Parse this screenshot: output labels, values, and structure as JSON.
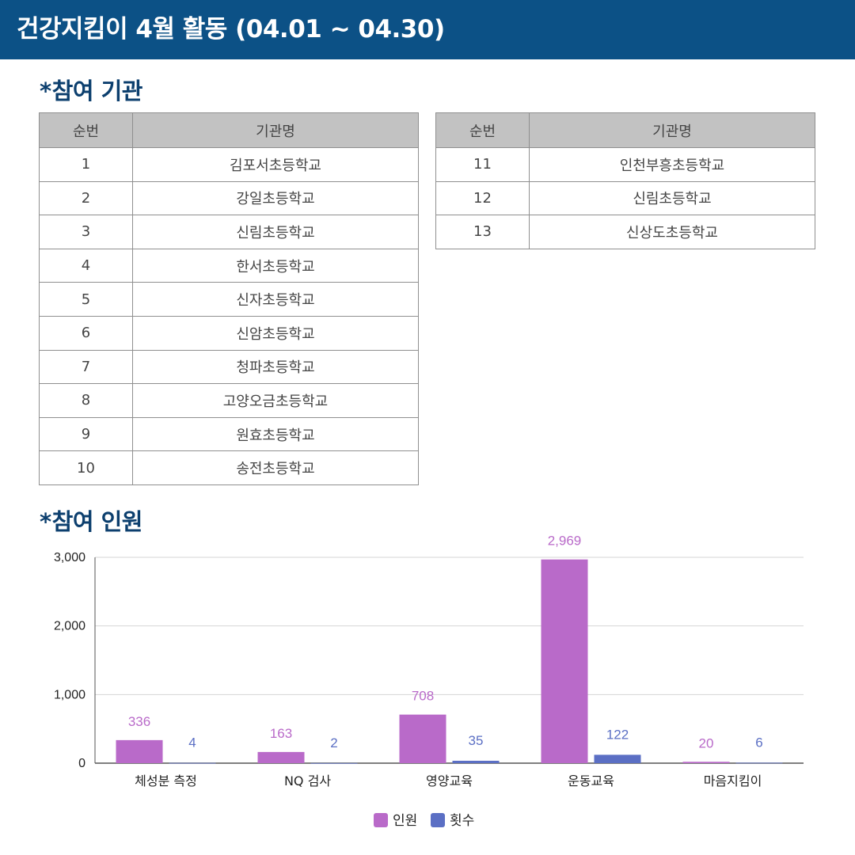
{
  "header": {
    "title": "건강지킴이 4월 활동 (04.01 ~ 04.30)"
  },
  "sections": {
    "orgs_title": "참여 기관",
    "people_title": "참여 인원",
    "star": "*"
  },
  "table": {
    "headers": {
      "num": "순번",
      "name": "기관명"
    },
    "left_rows": [
      {
        "num": "1",
        "name": "김포서초등학교"
      },
      {
        "num": "2",
        "name": "강일초등학교"
      },
      {
        "num": "3",
        "name": "신림초등학교"
      },
      {
        "num": "4",
        "name": "한서초등학교"
      },
      {
        "num": "5",
        "name": "신자초등학교"
      },
      {
        "num": "6",
        "name": "신암초등학교"
      },
      {
        "num": "7",
        "name": "청파초등학교"
      },
      {
        "num": "8",
        "name": "고양오금초등학교"
      },
      {
        "num": "9",
        "name": "원효초등학교"
      },
      {
        "num": "10",
        "name": "송전초등학교"
      }
    ],
    "right_rows": [
      {
        "num": "11",
        "name": "인천부흥초등학교"
      },
      {
        "num": "12",
        "name": "신림초등학교"
      },
      {
        "num": "13",
        "name": "신상도초등학교"
      }
    ]
  },
  "chart_data": {
    "type": "bar",
    "categories": [
      "체성분 측정",
      "NQ 검사",
      "영양교육",
      "운동교육",
      "마음지킴이"
    ],
    "series": [
      {
        "name": "인원",
        "color": "#b96ac9",
        "values": [
          336,
          163,
          708,
          2969,
          20
        ],
        "labels": [
          "336",
          "163",
          "708",
          "2,969",
          "20"
        ]
      },
      {
        "name": "횟수",
        "color": "#5b6fc4",
        "values": [
          4,
          2,
          35,
          122,
          6
        ],
        "labels": [
          "4",
          "2",
          "35",
          "122",
          "6"
        ]
      }
    ],
    "ylim": [
      0,
      3000
    ],
    "yticks": [
      0,
      1000,
      2000,
      3000
    ],
    "ytick_labels": [
      "0",
      "1,000",
      "2,000",
      "3,000"
    ],
    "grid": true,
    "legend": "bottom-center"
  }
}
